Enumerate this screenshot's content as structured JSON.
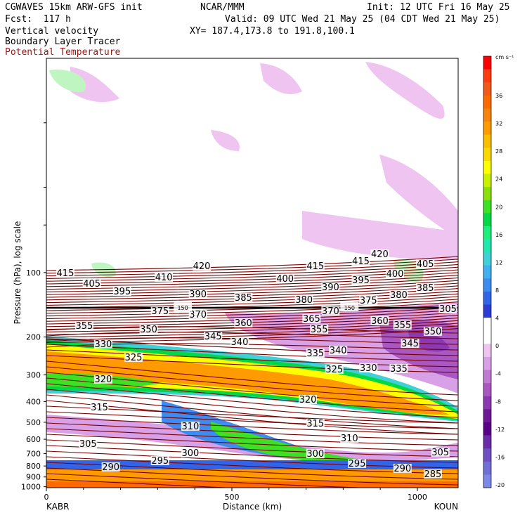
{
  "header": {
    "model": "CGWAVES 15km ARW-GFS init",
    "org": "NCAR/MMM",
    "init": "Init: 12 UTC Fri 16 May 25",
    "fcst": "Fcst:  117 h",
    "valid": "Valid: 09 UTC Wed 21 May 25 (04 CDT Wed 21 May 25)",
    "field1": "Vertical velocity",
    "xy": "XY= 187.4,173.8 to 191.8,100.1",
    "field2": "Boundary Layer Tracer",
    "field3": "Potential Temperature"
  },
  "colors": {
    "theta": "#7a0000",
    "field3_label": "#a01515"
  },
  "chart_data": {
    "type": "heatmap",
    "xlabel": "Distance (km)",
    "ylabel": "Pressure (hPa), log scale",
    "x_ticks": [
      "0",
      "500",
      "1000"
    ],
    "x_end_labels": {
      "left": "KABR",
      "right": "KOUN"
    },
    "y_ticks": [
      "100",
      "200",
      "300",
      "400",
      "500",
      "600",
      "700",
      "800",
      "900",
      "1000"
    ],
    "xlim": [
      0,
      1110
    ],
    "ylim": [
      1010,
      10
    ],
    "colorbar": {
      "unit": "cm s⁻¹",
      "labels": [
        "36",
        "32",
        "28",
        "24",
        "20",
        "16",
        "12",
        "8",
        "4",
        "0",
        "-4",
        "-8",
        "-12",
        "-16",
        "-20"
      ],
      "colors": [
        "#ff0000",
        "#ff3b10",
        "#f25a1a",
        "#ff6a00",
        "#f6830a",
        "#ff9a00",
        "#f9be00",
        "#fad800",
        "#ffff00",
        "#c8f000",
        "#8ae00a",
        "#3ce024",
        "#00d846",
        "#1cf07a",
        "#22e8b0",
        "#3fd0d8",
        "#40b0f0",
        "#3c8cf2",
        "#3264ea",
        "#2c3cd4",
        "#ffffff",
        "#ffffff",
        "#f0c4f0",
        "#d8a0e6",
        "#c07ad4",
        "#a858c0",
        "#8c38b0",
        "#6e1898",
        "#5a0088",
        "#6a2ca8",
        "#6e50c4",
        "#7070d8",
        "#7c88ea"
      ]
    },
    "theta_contour_labels": [
      {
        "text": "415",
        "x": 0.05,
        "y": 390
      },
      {
        "text": "405",
        "x": 0.12,
        "y": 405
      },
      {
        "text": "410",
        "x": 0.31,
        "y": 396
      },
      {
        "text": "420",
        "x": 0.41,
        "y": 380
      },
      {
        "text": "395",
        "x": 0.2,
        "y": 416
      },
      {
        "text": "390",
        "x": 0.4,
        "y": 420
      },
      {
        "text": "385",
        "x": 0.52,
        "y": 425
      },
      {
        "text": "400",
        "x": 0.63,
        "y": 398
      },
      {
        "text": "415",
        "x": 0.71,
        "y": 380
      },
      {
        "text": "415",
        "x": 0.83,
        "y": 373
      },
      {
        "text": "420",
        "x": 0.88,
        "y": 363
      },
      {
        "text": "405",
        "x": 1.0,
        "y": 377
      },
      {
        "text": "400",
        "x": 0.92,
        "y": 391
      },
      {
        "text": "395",
        "x": 0.83,
        "y": 400
      },
      {
        "text": "390",
        "x": 0.75,
        "y": 410
      },
      {
        "text": "385",
        "x": 1.0,
        "y": 411
      },
      {
        "text": "380",
        "x": 0.93,
        "y": 421
      },
      {
        "text": "380",
        "x": 0.68,
        "y": 428
      },
      {
        "text": "375",
        "x": 0.85,
        "y": 429
      },
      {
        "text": "375",
        "x": 0.3,
        "y": 444
      },
      {
        "text": "370",
        "x": 0.4,
        "y": 449
      },
      {
        "text": "370",
        "x": 0.75,
        "y": 444
      },
      {
        "text": "365",
        "x": 0.7,
        "y": 455
      },
      {
        "text": "360",
        "x": 0.52,
        "y": 461
      },
      {
        "text": "360",
        "x": 0.88,
        "y": 458
      },
      {
        "text": "355",
        "x": 0.1,
        "y": 465
      },
      {
        "text": "355",
        "x": 0.72,
        "y": 470
      },
      {
        "text": "355",
        "x": 0.94,
        "y": 464
      },
      {
        "text": "350",
        "x": 0.27,
        "y": 470
      },
      {
        "text": "350",
        "x": 1.02,
        "y": 473
      },
      {
        "text": "345",
        "x": 0.44,
        "y": 480
      },
      {
        "text": "345",
        "x": 0.96,
        "y": 490
      },
      {
        "text": "340",
        "x": 0.51,
        "y": 488
      },
      {
        "text": "340",
        "x": 0.77,
        "y": 500
      },
      {
        "text": "335",
        "x": 0.71,
        "y": 504
      },
      {
        "text": "335",
        "x": 0.93,
        "y": 526
      },
      {
        "text": "330",
        "x": 0.15,
        "y": 491
      },
      {
        "text": "330",
        "x": 0.85,
        "y": 525
      },
      {
        "text": "325",
        "x": 0.23,
        "y": 510
      },
      {
        "text": "325",
        "x": 0.76,
        "y": 527
      },
      {
        "text": "320",
        "x": 0.15,
        "y": 541
      },
      {
        "text": "320",
        "x": 0.69,
        "y": 570
      },
      {
        "text": "315",
        "x": 0.14,
        "y": 581
      },
      {
        "text": "315",
        "x": 0.71,
        "y": 604
      },
      {
        "text": "310",
        "x": 0.38,
        "y": 608
      },
      {
        "text": "310",
        "x": 0.8,
        "y": 625
      },
      {
        "text": "305",
        "x": 0.11,
        "y": 633
      },
      {
        "text": "305",
        "x": 1.04,
        "y": 645
      },
      {
        "text": "300",
        "x": 0.38,
        "y": 646
      },
      {
        "text": "300",
        "x": 0.71,
        "y": 647
      },
      {
        "text": "295",
        "x": 0.3,
        "y": 657
      },
      {
        "text": "295",
        "x": 0.82,
        "y": 661
      },
      {
        "text": "290",
        "x": 0.17,
        "y": 666
      },
      {
        "text": "290",
        "x": 0.94,
        "y": 668
      },
      {
        "text": "285",
        "x": 1.02,
        "y": 676
      },
      {
        "text": "150",
        "x": 0.36,
        "y": 438
      },
      {
        "text": "150",
        "x": 0.8,
        "y": 438
      },
      {
        "text": "305",
        "x": 1.06,
        "y": 441
      }
    ]
  }
}
